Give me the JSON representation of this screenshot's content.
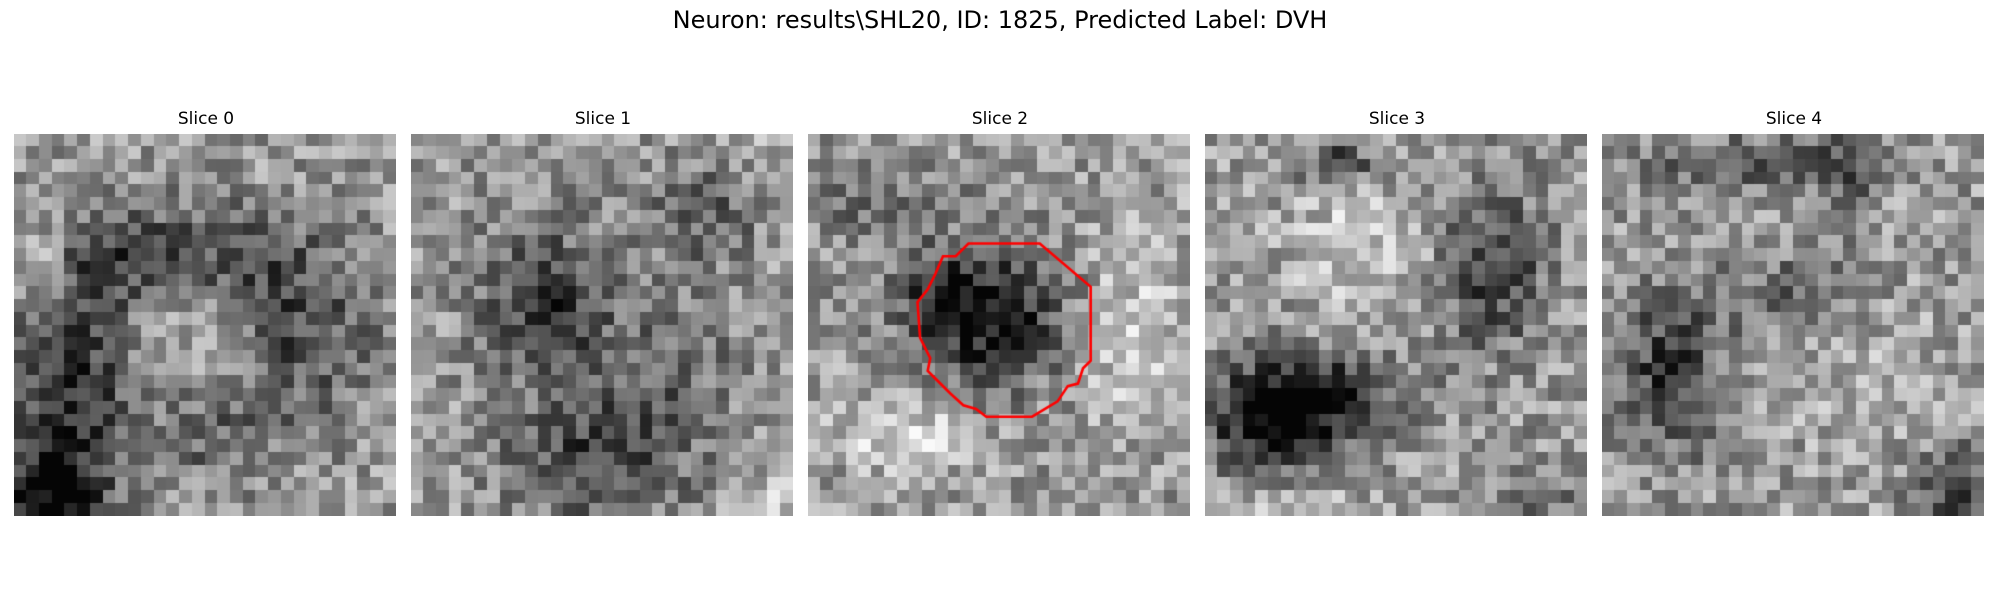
{
  "figure": {
    "title": "Neuron: results\\SHL20, ID: 1825, Predicted Label: DVH"
  },
  "panels": [
    {
      "title": "Slice 0"
    },
    {
      "title": "Slice 1"
    },
    {
      "title": "Slice 2"
    },
    {
      "title": "Slice 3"
    },
    {
      "title": "Slice 4"
    }
  ],
  "roi_outline": {
    "color": "#ff0000",
    "slice": "Slice 2",
    "shape": "octagon"
  },
  "colormap": "gray"
}
